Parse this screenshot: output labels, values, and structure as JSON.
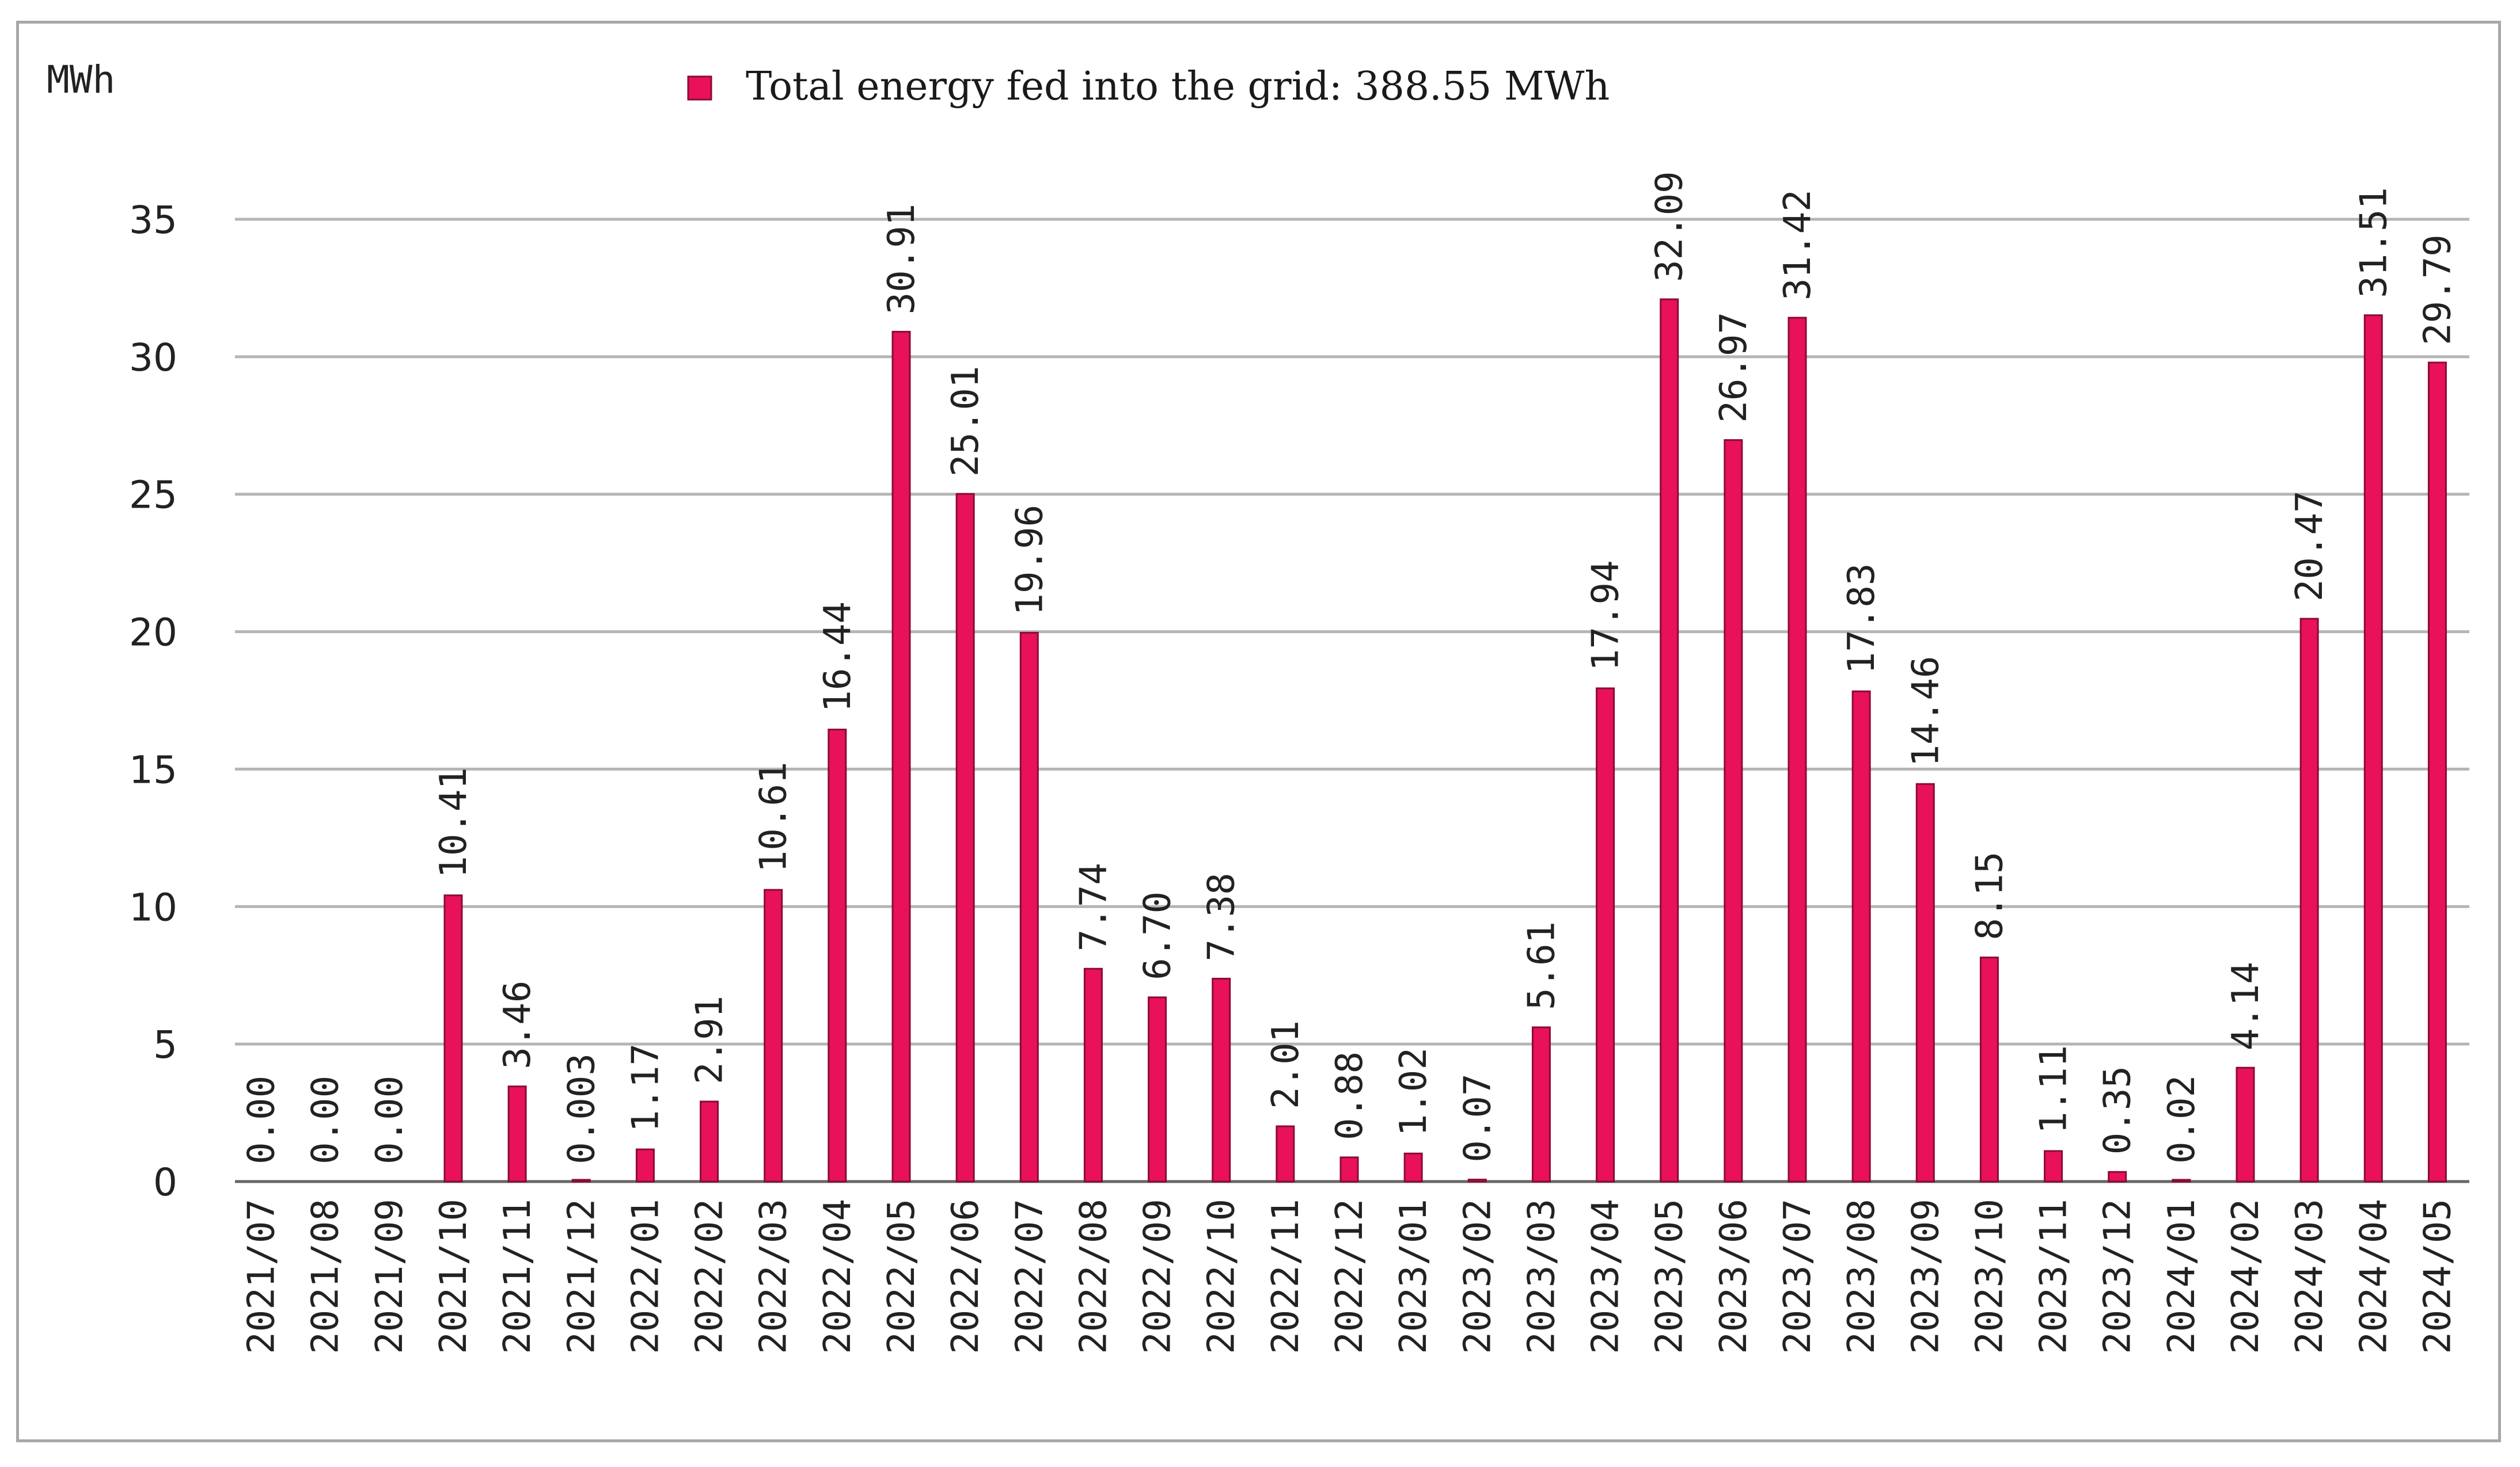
{
  "chart_data": {
    "type": "bar",
    "title": "",
    "xlabel": "",
    "ylabel": "",
    "unit_label": "MWh",
    "legend": {
      "label": "Total energy fed into the grid: 388.55 MWh",
      "placement": "top-center"
    },
    "ylim": [
      0,
      35
    ],
    "yticks": [
      0,
      5,
      10,
      15,
      20,
      25,
      30,
      35
    ],
    "grid": true,
    "colors": {
      "bar": "#e8115a",
      "bar_edge": "#8a0c33",
      "grid": "#b5b5b5",
      "axis": "#666666",
      "text": "#222222"
    },
    "categories": [
      "2021/07",
      "2021/08",
      "2021/09",
      "2021/10",
      "2021/11",
      "2021/12",
      "2022/01",
      "2022/02",
      "2022/03",
      "2022/04",
      "2022/05",
      "2022/06",
      "2022/07",
      "2022/08",
      "2022/09",
      "2022/10",
      "2022/11",
      "2022/12",
      "2023/01",
      "2023/02",
      "2023/03",
      "2023/04",
      "2023/05",
      "2023/06",
      "2023/07",
      "2023/08",
      "2023/09",
      "2023/10",
      "2023/11",
      "2023/12",
      "2024/01",
      "2024/02",
      "2024/03",
      "2024/04",
      "2024/05"
    ],
    "values": [
      0.0,
      0.0,
      0.0,
      10.41,
      3.46,
      0.003,
      1.17,
      2.91,
      10.61,
      16.44,
      30.91,
      25.01,
      19.96,
      7.74,
      6.7,
      7.38,
      2.01,
      0.88,
      1.02,
      0.07,
      5.61,
      17.94,
      32.09,
      26.97,
      31.42,
      17.83,
      14.46,
      8.15,
      1.11,
      0.35,
      0.02,
      4.14,
      20.47,
      31.51,
      29.79
    ],
    "value_labels": [
      "0.00",
      "0.00",
      "0.00",
      "10.41",
      "3.46",
      "0.003",
      "1.17",
      "2.91",
      "10.61",
      "16.44",
      "30.91",
      "25.01",
      "19.96",
      "7.74",
      "6.70",
      "7.38",
      "2.01",
      "0.88",
      "1.02",
      "0.07",
      "5.61",
      "17.94",
      "32.09",
      "26.97",
      "31.42",
      "17.83",
      "14.46",
      "8.15",
      "1.11",
      "0.35",
      "0.02",
      "4.14",
      "20.47",
      "31.51",
      "29.79"
    ]
  }
}
